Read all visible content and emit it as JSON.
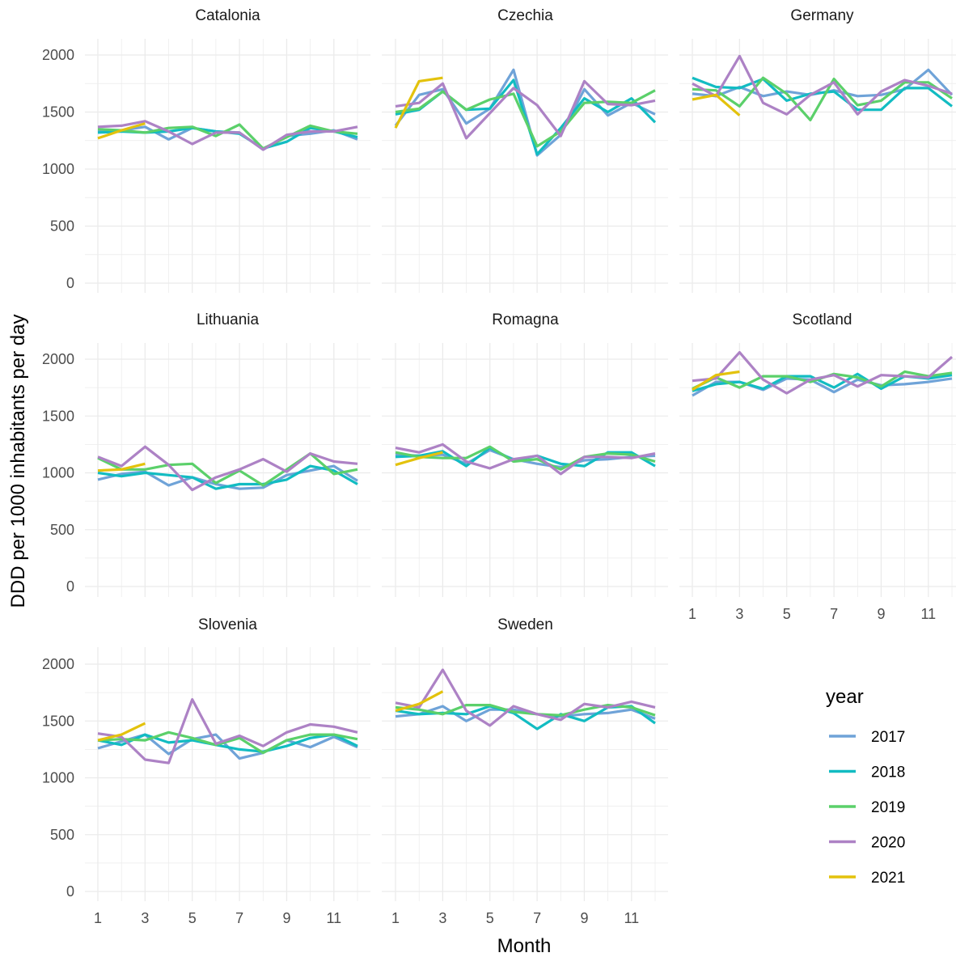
{
  "chart_data": {
    "type": "line",
    "xlabel": "Month",
    "ylabel": "DDD per 1000 inhabitants per day",
    "x": [
      1,
      2,
      3,
      4,
      5,
      6,
      7,
      8,
      9,
      10,
      11,
      12
    ],
    "x_ticks": [
      1,
      3,
      5,
      7,
      9,
      11
    ],
    "y_ticks": [
      0,
      500,
      1000,
      1500,
      2000
    ],
    "ylim": [
      0,
      2100
    ],
    "xlim": [
      1,
      12
    ],
    "grid": true,
    "legend": {
      "title": "year",
      "position": "bottom-right",
      "entries": [
        {
          "label": "2017",
          "color": "#6fa3d8"
        },
        {
          "label": "2018",
          "color": "#12bcc2"
        },
        {
          "label": "2019",
          "color": "#5bd06a"
        },
        {
          "label": "2020",
          "color": "#ad82c5"
        },
        {
          "label": "2021",
          "color": "#e3c20c"
        }
      ]
    },
    "panels": [
      {
        "title": "Catalonia",
        "series": [
          {
            "name": "2017",
            "values": [
              1340,
              1340,
              1370,
              1260,
              1360,
              1330,
              1320,
              1170,
              1290,
              1310,
              1340,
              1260
            ]
          },
          {
            "name": "2018",
            "values": [
              1320,
              1330,
              1320,
              1330,
              1360,
              1330,
              1310,
              1180,
              1240,
              1360,
              1330,
              1280
            ]
          },
          {
            "name": "2019",
            "values": [
              1350,
              1340,
              1320,
              1360,
              1370,
              1290,
              1390,
              1180,
              1280,
              1380,
              1330,
              1310
            ]
          },
          {
            "name": "2020",
            "values": [
              1370,
              1380,
              1420,
              1330,
              1220,
              1320,
              1320,
              1170,
              1300,
              1330,
              1330,
              1370
            ]
          },
          {
            "name": "2021",
            "values": [
              1270,
              1340,
              1400
            ]
          }
        ]
      },
      {
        "title": "Czechia",
        "series": [
          {
            "name": "2017",
            "values": [
              1380,
              1650,
              1700,
              1400,
              1530,
              1870,
              1120,
              1300,
              1700,
              1470,
              1580,
              1480
            ]
          },
          {
            "name": "2018",
            "values": [
              1480,
              1520,
              1680,
              1520,
              1530,
              1780,
              1130,
              1360,
              1620,
              1500,
              1620,
              1410
            ]
          },
          {
            "name": "2019",
            "values": [
              1500,
              1530,
              1680,
              1520,
              1610,
              1660,
              1200,
              1330,
              1580,
              1590,
              1580,
              1690
            ]
          },
          {
            "name": "2020",
            "values": [
              1550,
              1580,
              1750,
              1270,
              1490,
              1710,
              1560,
              1290,
              1770,
              1570,
              1560,
              1600
            ]
          },
          {
            "name": "2021",
            "values": [
              1360,
              1770,
              1800
            ]
          }
        ]
      },
      {
        "title": "Germany",
        "series": [
          {
            "name": "2017",
            "values": [
              1660,
              1640,
              1720,
              1640,
              1680,
              1650,
              1690,
              1640,
              1650,
              1700,
              1870,
              1650
            ]
          },
          {
            "name": "2018",
            "values": [
              1800,
              1720,
              1710,
              1790,
              1600,
              1660,
              1680,
              1520,
              1520,
              1710,
              1710,
              1550
            ]
          },
          {
            "name": "2019",
            "values": [
              1700,
              1690,
              1550,
              1800,
              1660,
              1430,
              1790,
              1560,
              1600,
              1760,
              1760,
              1620
            ]
          },
          {
            "name": "2020",
            "values": [
              1750,
              1640,
              1990,
              1580,
              1480,
              1650,
              1760,
              1480,
              1680,
              1780,
              1730,
              1660
            ]
          },
          {
            "name": "2021",
            "values": [
              1610,
              1650,
              1470
            ]
          }
        ]
      },
      {
        "title": "Lithuania",
        "series": [
          {
            "name": "2017",
            "values": [
              940,
              990,
              1010,
              890,
              960,
              900,
              860,
              870,
              980,
              1020,
              1060,
              930
            ]
          },
          {
            "name": "2018",
            "values": [
              1000,
              970,
              1000,
              980,
              960,
              860,
              900,
              900,
              940,
              1060,
              1020,
              900
            ]
          },
          {
            "name": "2019",
            "values": [
              1130,
              1030,
              1030,
              1070,
              1080,
              910,
              1020,
              890,
              1030,
              1170,
              990,
              1030
            ]
          },
          {
            "name": "2020",
            "values": [
              1140,
              1060,
              1230,
              1070,
              850,
              960,
              1030,
              1120,
              1010,
              1170,
              1100,
              1080
            ]
          },
          {
            "name": "2021",
            "values": [
              1020,
              1030,
              1080
            ]
          }
        ]
      },
      {
        "title": "Romagna",
        "series": [
          {
            "name": "2017",
            "values": [
              1160,
              1150,
              1160,
              1080,
              1200,
              1120,
              1080,
              1050,
              1110,
              1120,
              1140,
              1150
            ]
          },
          {
            "name": "2018",
            "values": [
              1140,
              1150,
              1190,
              1060,
              1220,
              1110,
              1150,
              1080,
              1060,
              1180,
              1180,
              1060
            ]
          },
          {
            "name": "2019",
            "values": [
              1180,
              1140,
              1130,
              1130,
              1230,
              1100,
              1120,
              1030,
              1140,
              1170,
              1160,
              1100
            ]
          },
          {
            "name": "2020",
            "values": [
              1220,
              1180,
              1250,
              1100,
              1040,
              1120,
              1150,
              990,
              1140,
              1140,
              1130,
              1170
            ]
          },
          {
            "name": "2021",
            "values": [
              1070,
              1130,
              1180
            ]
          }
        ]
      },
      {
        "title": "Scotland",
        "series": [
          {
            "name": "2017",
            "values": [
              1680,
              1800,
              1800,
              1730,
              1830,
              1820,
              1710,
              1820,
              1770,
              1780,
              1800,
              1830
            ]
          },
          {
            "name": "2018",
            "values": [
              1720,
              1780,
              1800,
              1740,
              1850,
              1850,
              1750,
              1870,
              1740,
              1850,
              1830,
              1860
            ]
          },
          {
            "name": "2019",
            "values": [
              1740,
              1840,
              1750,
              1850,
              1850,
              1800,
              1870,
              1840,
              1760,
              1890,
              1850,
              1880
            ]
          },
          {
            "name": "2020",
            "values": [
              1810,
              1830,
              2060,
              1820,
              1700,
              1820,
              1860,
              1760,
              1860,
              1850,
              1840,
              2020
            ]
          },
          {
            "name": "2021",
            "values": [
              1730,
              1860,
              1890
            ]
          }
        ]
      },
      {
        "title": "Slovenia",
        "series": [
          {
            "name": "2017",
            "values": [
              1260,
              1320,
              1380,
              1210,
              1340,
              1380,
              1170,
              1220,
              1330,
              1270,
              1360,
              1270
            ]
          },
          {
            "name": "2018",
            "values": [
              1330,
              1290,
              1380,
              1310,
              1330,
              1290,
              1250,
              1230,
              1280,
              1350,
              1380,
              1280
            ]
          },
          {
            "name": "2019",
            "values": [
              1330,
              1340,
              1330,
              1400,
              1350,
              1290,
              1350,
              1220,
              1330,
              1380,
              1380,
              1340
            ]
          },
          {
            "name": "2020",
            "values": [
              1390,
              1360,
              1160,
              1130,
              1690,
              1300,
              1370,
              1280,
              1400,
              1470,
              1450,
              1400
            ]
          },
          {
            "name": "2021",
            "values": [
              1330,
              1380,
              1480
            ]
          }
        ]
      },
      {
        "title": "Sweden",
        "series": [
          {
            "name": "2017",
            "values": [
              1540,
              1560,
              1630,
              1500,
              1600,
              1600,
              1560,
              1540,
              1560,
              1570,
              1600,
              1520
            ]
          },
          {
            "name": "2018",
            "values": [
              1590,
              1560,
              1570,
              1560,
              1630,
              1570,
              1430,
              1560,
              1500,
              1620,
              1630,
              1480
            ]
          },
          {
            "name": "2019",
            "values": [
              1620,
              1600,
              1560,
              1640,
              1640,
              1580,
              1560,
              1550,
              1600,
              1640,
              1620,
              1550
            ]
          },
          {
            "name": "2020",
            "values": [
              1660,
              1620,
              1950,
              1590,
              1460,
              1630,
              1560,
              1510,
              1650,
              1620,
              1670,
              1620
            ]
          },
          {
            "name": "2021",
            "values": [
              1590,
              1650,
              1760
            ]
          }
        ]
      }
    ]
  }
}
